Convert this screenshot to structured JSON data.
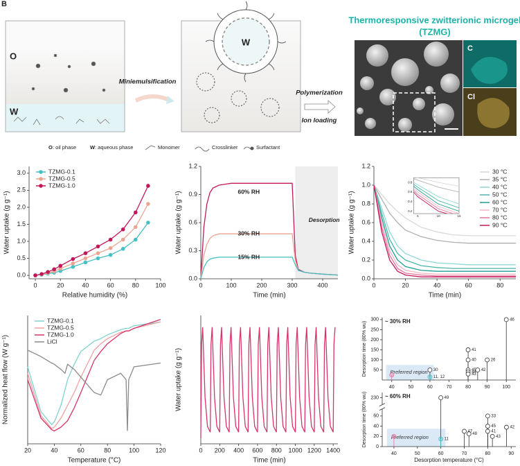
{
  "figure_label": "B",
  "schematic": {
    "oil_label": "O",
    "water_label": "W",
    "step1": "Miniemulsification",
    "step2": "Polymerization",
    "step3": "Ion loading",
    "microgel_core": "W",
    "product_title": "Thermoresponsive zwitterionic microgel",
    "product_abbr": "(TZMG)",
    "map_c": "C",
    "map_cl": "Cl",
    "legend": [
      {
        "key": "O",
        "text": ": oil phase"
      },
      {
        "key": "W",
        "text": ": aqueous phase"
      },
      {
        "text": "Monomer"
      },
      {
        "text": "Crosslinker"
      },
      {
        "text": "Surfactant"
      }
    ]
  },
  "chart_data": [
    {
      "type": "line",
      "xlabel": "Relative humidity (%)",
      "ylabel": "Water uptake (g g⁻¹)",
      "markers": true,
      "legend": "upper left",
      "x": [
        0,
        5,
        10,
        15,
        20,
        30,
        40,
        50,
        60,
        70,
        80,
        90
      ],
      "series": [
        {
          "name": "TZMG-0.1",
          "color": "#45c0c4",
          "values": [
            0,
            0.02,
            0.05,
            0.08,
            0.13,
            0.25,
            0.38,
            0.5,
            0.6,
            0.78,
            1.05,
            1.55
          ]
        },
        {
          "name": "TZMG-0.5",
          "color": "#eaa592",
          "values": [
            0,
            0.03,
            0.07,
            0.12,
            0.2,
            0.35,
            0.5,
            0.65,
            0.8,
            1.05,
            1.42,
            2.1
          ]
        },
        {
          "name": "TZMG-1.0",
          "color": "#c2185b",
          "values": [
            0,
            0.04,
            0.1,
            0.18,
            0.28,
            0.48,
            0.65,
            0.85,
            1.05,
            1.35,
            1.85,
            2.63
          ]
        }
      ],
      "xlim": [
        -5,
        100
      ],
      "ylim": [
        -0.1,
        3.2
      ],
      "xticks": [
        0,
        20,
        40,
        60,
        80,
        100
      ],
      "yticks": [
        {
          "value": 0,
          "label": "0.0"
        },
        0.5,
        {
          "value": 1,
          "label": "1.0"
        },
        1.5,
        {
          "value": 2,
          "label": "2.0"
        },
        2.5,
        {
          "value": 3,
          "label": "3.0"
        }
      ]
    },
    {
      "type": "line",
      "xlabel": "Time (min)",
      "ylabel": "Water uptake (g g⁻¹)",
      "x": [
        0,
        10,
        20,
        30,
        40,
        60,
        80,
        100,
        150,
        200,
        250,
        300,
        310,
        320,
        340,
        360,
        400,
        450
      ],
      "series": [
        {
          "color": "#c2185b",
          "values": [
            0,
            0.55,
            0.8,
            0.92,
            0.97,
            1.0,
            1.01,
            1.02,
            1.02,
            1.02,
            1.02,
            1.02,
            0.25,
            0.1,
            0.07,
            0.06,
            0.05,
            0.04
          ]
        },
        {
          "color": "#eaa592",
          "values": [
            0,
            0.25,
            0.37,
            0.43,
            0.46,
            0.48,
            0.48,
            0.48,
            0.48,
            0.48,
            0.48,
            0.48,
            0.2,
            0.09,
            0.07,
            0.06,
            0.05,
            0.04
          ]
        },
        {
          "color": "#45c0c4",
          "values": [
            0,
            0.12,
            0.18,
            0.21,
            0.22,
            0.23,
            0.23,
            0.23,
            0.23,
            0.23,
            0.23,
            0.23,
            0.15,
            0.09,
            0.07,
            0.06,
            0.05,
            0.04
          ]
        }
      ],
      "annotations": [
        "60% RH",
        "30% RH",
        "15% RH",
        "Desorption"
      ],
      "shade_x": [
        310,
        450
      ],
      "xlim": [
        0,
        450
      ],
      "ylim": [
        0,
        1.2
      ],
      "xticks": [
        0,
        100,
        200,
        300,
        400
      ],
      "yticks": [
        {
          "value": 0,
          "label": "0.0"
        },
        0.3,
        0.6,
        0.9,
        1.2
      ]
    },
    {
      "type": "line",
      "xlabel": "Time (min)",
      "ylabel": "Water uptake (g g⁻¹)",
      "legend": "upper right",
      "x": [
        0,
        5,
        10,
        15,
        20,
        30,
        40,
        50,
        60,
        70,
        80,
        90
      ],
      "series": [
        {
          "name": "30 °C",
          "color": "#d9d9d9",
          "values": [
            1,
            0.9,
            0.8,
            0.72,
            0.65,
            0.55,
            0.5,
            0.47,
            0.46,
            0.46,
            0.46,
            0.46
          ]
        },
        {
          "name": "35 °C",
          "color": "#b0b0b0",
          "values": [
            1,
            0.85,
            0.7,
            0.6,
            0.52,
            0.45,
            0.41,
            0.39,
            0.38,
            0.38,
            0.38,
            0.38
          ]
        },
        {
          "name": "40 °C",
          "color": "#8fd8d3",
          "values": [
            1,
            0.75,
            0.5,
            0.35,
            0.27,
            0.2,
            0.17,
            0.16,
            0.15,
            0.15,
            0.15,
            0.15
          ]
        },
        {
          "name": "50 °C",
          "color": "#4db6ac",
          "values": [
            1,
            0.7,
            0.42,
            0.27,
            0.2,
            0.14,
            0.12,
            0.11,
            0.11,
            0.11,
            0.11,
            0.11
          ]
        },
        {
          "name": "60 °C",
          "color": "#1e9e92",
          "values": [
            1,
            0.65,
            0.35,
            0.2,
            0.13,
            0.09,
            0.08,
            0.08,
            0.08,
            0.08,
            0.08,
            0.08
          ]
        },
        {
          "name": "70 °C",
          "color": "#f4b6c2",
          "values": [
            1,
            0.6,
            0.3,
            0.15,
            0.09,
            0.06,
            0.05,
            0.05,
            0.05,
            0.05,
            0.05,
            0.05
          ]
        },
        {
          "name": "80 °C",
          "color": "#e57399",
          "values": [
            1,
            0.55,
            0.25,
            0.11,
            0.06,
            0.04,
            0.03,
            0.03,
            0.03,
            0.03,
            0.03,
            0.03
          ]
        },
        {
          "name": "90 °C",
          "color": "#c2185b",
          "values": [
            1,
            0.5,
            0.2,
            0.08,
            0.04,
            0.02,
            0.02,
            0.02,
            0.02,
            0.02,
            0.02,
            0.02
          ]
        }
      ],
      "inset": {
        "xlim": [
          4,
          15
        ],
        "ylim": [
          0.15,
          0.9
        ],
        "xticks": [
          5,
          10,
          15
        ],
        "yticks": [
          0.2,
          0.4,
          0.6,
          0.8
        ]
      },
      "xlim": [
        0,
        90
      ],
      "ylim": [
        0,
        1.2
      ],
      "xticks": [
        0,
        20,
        40,
        60,
        80
      ],
      "yticks": [
        {
          "value": 0,
          "label": "0.0"
        },
        0.2,
        0.4,
        0.6,
        0.8,
        {
          "value": 1,
          "label": "1.0"
        },
        1.2
      ]
    },
    {
      "type": "line",
      "xlabel": "Temperature (°C)",
      "ylabel": "Normalized heat flow (W g⁻¹)",
      "legend": "upper left",
      "x": [
        20,
        30,
        38,
        40,
        45,
        48,
        50,
        55,
        60,
        70,
        75,
        80,
        90,
        94,
        95,
        96,
        100,
        120
      ],
      "series": [
        {
          "name": "TZMG-0.1",
          "color": "#7fd3cf",
          "values": [
            0.6,
            0.25,
            0.15,
            0.17,
            0.3,
            0.42,
            0.5,
            0.62,
            0.72,
            0.8,
            0.82,
            0.85,
            0.89,
            0.9,
            0.9,
            0.9,
            0.92,
            0.95
          ]
        },
        {
          "name": "TZMG-0.5",
          "color": "#f2a0a0",
          "values": [
            0.55,
            0.22,
            0.12,
            0.13,
            0.2,
            0.26,
            0.3,
            0.4,
            0.52,
            0.73,
            0.78,
            0.82,
            0.87,
            0.88,
            0.88,
            0.88,
            0.9,
            0.95
          ]
        },
        {
          "name": "TZMG-1.0",
          "color": "#d6336c",
          "values": [
            0.5,
            0.2,
            0.11,
            0.1,
            0.13,
            0.16,
            0.18,
            0.28,
            0.4,
            0.65,
            0.72,
            0.78,
            0.86,
            0.88,
            0.88,
            0.88,
            0.9,
            0.97
          ]
        },
        {
          "name": "LiCl",
          "color": "#8a8a8a",
          "values": [
            0.73,
            0.68,
            0.63,
            0.62,
            0.58,
            0.55,
            0.62,
            0.58,
            0.52,
            0.4,
            0.38,
            0.5,
            0.55,
            0.5,
            0.1,
            0.5,
            0.6,
            0.63
          ]
        }
      ],
      "xlim": [
        20,
        120
      ],
      "ylim": [
        0,
        1
      ],
      "xticks": [
        20,
        40,
        60,
        80,
        100,
        120
      ]
    },
    {
      "type": "line",
      "xlabel": "Time (min)",
      "ylabel": "Water uptake (g g⁻¹)",
      "x": [
        0,
        8,
        20,
        45,
        70,
        100,
        108,
        120,
        145,
        170,
        200,
        208,
        220,
        245,
        270,
        300,
        308,
        320,
        345,
        370,
        400,
        408,
        420,
        445,
        470,
        500,
        508,
        520,
        545,
        570,
        600,
        608,
        620,
        645,
        670,
        700,
        708,
        720,
        745,
        770,
        800,
        808,
        820,
        845,
        870,
        900,
        908,
        920,
        945,
        970,
        1000,
        1008,
        1020,
        1045,
        1070,
        1100,
        1108,
        1120,
        1145,
        1170,
        1200,
        1208,
        1220,
        1245,
        1270,
        1300,
        1308,
        1320,
        1345,
        1370,
        1400,
        1408,
        1420
      ],
      "series": [
        {
          "color": "#d6336c",
          "values": [
            0.05,
            0.85,
            1.0,
            0.4,
            0.15,
            0.1,
            0.85,
            1.0,
            0.4,
            0.15,
            0.1,
            0.85,
            1.0,
            0.4,
            0.15,
            0.1,
            0.85,
            1.0,
            0.4,
            0.15,
            0.1,
            0.85,
            1.0,
            0.4,
            0.15,
            0.1,
            0.85,
            1.0,
            0.4,
            0.15,
            0.1,
            0.85,
            1.0,
            0.4,
            0.15,
            0.1,
            0.85,
            1.0,
            0.4,
            0.15,
            0.1,
            0.85,
            1.0,
            0.4,
            0.15,
            0.1,
            0.85,
            1.0,
            0.4,
            0.15,
            0.1,
            0.85,
            1.0,
            0.4,
            0.15,
            0.1,
            0.85,
            1.0,
            0.4,
            0.15,
            0.1,
            0.85,
            1.0,
            0.4,
            0.15,
            0.1,
            0.85,
            1.0,
            0.4,
            0.15,
            0.1,
            0.85,
            1.0
          ]
        }
      ],
      "xlim": [
        0,
        1450
      ],
      "ylim": [
        0,
        1.1
      ],
      "xticks": [
        0,
        200,
        400,
        600,
        800,
        1000,
        1200,
        1400
      ]
    },
    {
      "type": "lollipop",
      "title": "~ 30% RH",
      "ylabel": "Desorption time (80% wu)",
      "x": [
        40,
        60,
        60,
        80,
        80,
        80,
        80,
        80,
        85,
        90,
        100
      ],
      "values": [
        25,
        50,
        15,
        150,
        100,
        50,
        40,
        30,
        50,
        100,
        300
      ],
      "point_labels": [
        null,
        "30",
        "11, 12",
        "41",
        "40",
        "45",
        "44",
        "43",
        "42",
        "26",
        "46"
      ],
      "colors": [
        "#e8709a",
        "#333333",
        "#45c0c4",
        "#333333",
        "#333333",
        "#333333",
        "#333333",
        "#333333",
        "#333333",
        "#333333",
        "#333333"
      ],
      "region": {
        "label": "Preferred region",
        "xlim": [
          37,
          62
        ],
        "ylim": [
          0,
          75
        ]
      },
      "xlim": [
        35,
        105
      ],
      "ylim": [
        0,
        310
      ],
      "xticks": [
        40,
        50,
        60,
        70,
        80,
        90,
        100
      ],
      "yticks": [
        50,
        100,
        150,
        200,
        250,
        300
      ]
    },
    {
      "type": "lollipop",
      "title": "~ 60% RH",
      "ylabel": "Desorption time (80% wu)",
      "xlabel": "Desorption temperature (°C)",
      "x": [
        40,
        60,
        60,
        70,
        72,
        80,
        80,
        80,
        82,
        88
      ],
      "values": [
        20,
        230,
        15,
        30,
        25,
        60,
        40,
        30,
        20,
        38
      ],
      "point_labels": [
        null,
        "49",
        "11",
        "47",
        "48",
        "33",
        "45",
        "41",
        "43",
        "42"
      ],
      "colors": [
        "#e8709a",
        "#333333",
        "#45c0c4",
        "#333333",
        "#333333",
        "#333333",
        "#333333",
        "#333333",
        "#333333",
        "#333333"
      ],
      "region": {
        "label": "Preferred region",
        "xlim": [
          37,
          62
        ],
        "ylim": [
          0,
          35
        ]
      },
      "ybreak": [
        70,
        215
      ],
      "xlim": [
        35,
        92
      ],
      "ylim": [
        0,
        240
      ],
      "xticks": [
        40,
        50,
        60,
        70,
        80,
        90
      ],
      "yticks": [
        0,
        20,
        40,
        60,
        230
      ]
    }
  ]
}
